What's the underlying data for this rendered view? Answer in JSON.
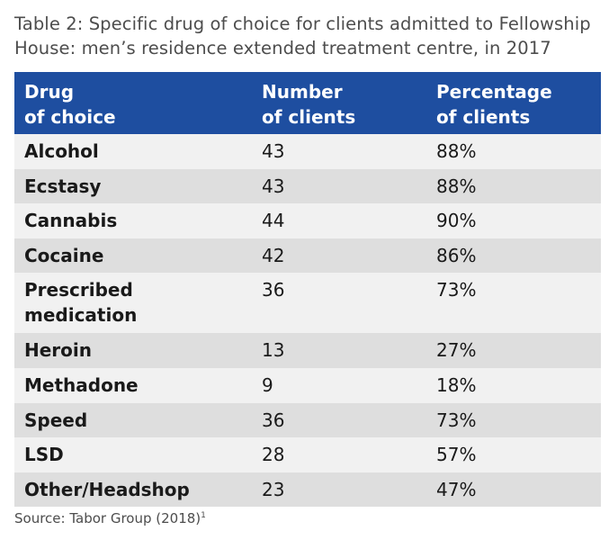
{
  "title": "Table 2: Specific drug of choice for clients admitted to Fellowship House: men’s residence extended treatment centre, in 2017",
  "header": {
    "col1_line1": "Drug",
    "col1_line2": "of choice",
    "col2_line1": "Number",
    "col2_line2": "of clients",
    "col3_line1": "Percentage",
    "col3_line2": "of clients"
  },
  "rows": [
    {
      "drug": "Alcohol",
      "number": "43",
      "percentage": "88%"
    },
    {
      "drug": "Ecstasy",
      "number": "43",
      "percentage": "88%"
    },
    {
      "drug": "Cannabis",
      "number": "44",
      "percentage": "90%"
    },
    {
      "drug": "Cocaine",
      "number": "42",
      "percentage": "86%"
    },
    {
      "drug_line1": "Prescribed",
      "drug_line2": "medication",
      "number": "36",
      "percentage": "73%"
    },
    {
      "drug": "Heroin",
      "number": "13",
      "percentage": "27%"
    },
    {
      "drug": "Methadone",
      "number": "9",
      "percentage": "18%"
    },
    {
      "drug": "Speed",
      "number": "36",
      "percentage": "73%"
    },
    {
      "drug": "LSD",
      "number": "28",
      "percentage": "57%"
    },
    {
      "drug": "Other/Headshop",
      "number": "23",
      "percentage": "47%"
    }
  ],
  "source": {
    "text": "Source: Tabor Group (2018)",
    "footnote_marker": "1"
  },
  "colors": {
    "header_bg": "#1e4ea0",
    "row_light": "#f1f1f1",
    "row_dark": "#dedede"
  }
}
